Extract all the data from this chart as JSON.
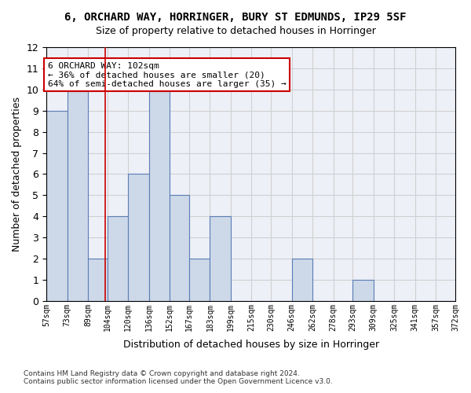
{
  "title_line1": "6, ORCHARD WAY, HORRINGER, BURY ST EDMUNDS, IP29 5SF",
  "title_line2": "Size of property relative to detached houses in Horringer",
  "xlabel": "Distribution of detached houses by size in Horringer",
  "ylabel": "Number of detached properties",
  "bar_edges": [
    57,
    73,
    89,
    104,
    120,
    136,
    152,
    167,
    183,
    199,
    215,
    230,
    246,
    262,
    278,
    293,
    309,
    325,
    341,
    357,
    372
  ],
  "bar_heights": [
    9,
    10,
    2,
    4,
    6,
    10,
    5,
    2,
    4,
    0,
    0,
    0,
    2,
    0,
    0,
    1,
    0,
    0,
    0,
    0
  ],
  "bar_color": "#cdd8e8",
  "bar_edgecolor": "#5a7db5",
  "vline_x": 102,
  "vline_color": "#cc0000",
  "annotation_text": "6 ORCHARD WAY: 102sqm\n← 36% of detached houses are smaller (20)\n64% of semi-detached houses are larger (35) →",
  "annotation_box_edgecolor": "#cc0000",
  "annotation_box_facecolor": "white",
  "ylim": [
    0,
    12
  ],
  "yticks": [
    0,
    1,
    2,
    3,
    4,
    5,
    6,
    7,
    8,
    9,
    10,
    11,
    12
  ],
  "tick_labels": [
    "57sqm",
    "73sqm",
    "89sqm",
    "104sqm",
    "120sqm",
    "136sqm",
    "152sqm",
    "167sqm",
    "183sqm",
    "199sqm",
    "215sqm",
    "230sqm",
    "246sqm",
    "262sqm",
    "278sqm",
    "293sqm",
    "309sqm",
    "325sqm",
    "341sqm",
    "357sqm",
    "372sqm"
  ],
  "grid_color": "#d0d0d0",
  "background_color": "#eef0f8",
  "footnote": "Contains HM Land Registry data © Crown copyright and database right 2024.\nContains public sector information licensed under the Open Government Licence v3.0."
}
